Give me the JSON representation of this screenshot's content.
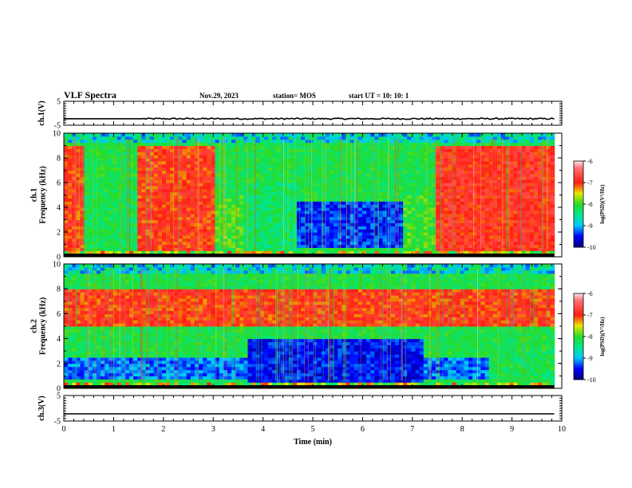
{
  "header": {
    "title": "VLF Spectra",
    "date": "Nov.29, 2023",
    "station": "station= MOS",
    "start": "start  UT =   10: 10: 1"
  },
  "chart_data": [
    {
      "type": "line",
      "ylabel": "ch.1(V)",
      "ylim": [
        -5,
        5
      ],
      "yticks": [
        "5",
        "-5"
      ],
      "series": [
        {
          "x": [
            0,
            9.85
          ],
          "values": [
            -2.3,
            -2.3
          ]
        }
      ]
    },
    {
      "type": "heatmap",
      "ylabel": "ch.1\nFrequency (kHz)",
      "ylim": [
        0,
        10
      ],
      "yticks": [
        "0",
        "2",
        "4",
        "6",
        "8",
        "10"
      ],
      "colorbar": {
        "min": -10,
        "max": -6,
        "ticks": [
          "-6",
          "-7",
          "-8",
          "-9",
          "-10"
        ],
        "label": "log(PSD)(V²/Hz)"
      },
      "regions": [
        {
          "t": [
            0,
            0.4
          ],
          "f": [
            0.5,
            9
          ],
          "level": -7
        },
        {
          "t": [
            0.4,
            1.5
          ],
          "f": [
            0.5,
            5
          ],
          "level": -8.2
        },
        {
          "t": [
            1.5,
            3.0
          ],
          "f": [
            0.5,
            9
          ],
          "level": -7
        },
        {
          "t": [
            3.0,
            3.6
          ],
          "f": [
            0.5,
            5
          ],
          "level": -8
        },
        {
          "t": [
            3.6,
            4.7
          ],
          "f": [
            0.5,
            6
          ],
          "level": -8.3
        },
        {
          "t": [
            4.7,
            6.8
          ],
          "f": [
            0.8,
            4.5
          ],
          "level": -9.4
        },
        {
          "t": [
            6.8,
            7.5
          ],
          "f": [
            0.5,
            5
          ],
          "level": -8
        },
        {
          "t": [
            7.5,
            9.85
          ],
          "f": [
            0.5,
            9
          ],
          "level": -6.9
        }
      ]
    },
    {
      "type": "heatmap",
      "ylabel": "ch.2\nFrequency (kHz)",
      "ylim": [
        0,
        10
      ],
      "yticks": [
        "0",
        "2",
        "4",
        "6",
        "8",
        "10"
      ],
      "colorbar": {
        "min": -10,
        "max": -6,
        "ticks": [
          "-6",
          "-7",
          "-8",
          "-9",
          "-10"
        ],
        "label": "log(PSD)(V²/Hz)"
      },
      "regions": [
        {
          "t": [
            0,
            9.85
          ],
          "f": [
            5,
            8
          ],
          "level": -7
        },
        {
          "t": [
            0,
            9.85
          ],
          "f": [
            0.8,
            2.5
          ],
          "level": -9.2
        },
        {
          "t": [
            3.7,
            7.2
          ],
          "f": [
            0.5,
            4
          ],
          "level": -9.5
        },
        {
          "t": [
            8.5,
            9.85
          ],
          "f": [
            0.5,
            3
          ],
          "level": -8.2
        }
      ]
    },
    {
      "type": "line",
      "ylabel": "ch.3(V)",
      "xlabel": "Time  (min)",
      "ylim": [
        -5,
        5
      ],
      "yticks": [
        "5",
        "-5"
      ],
      "x_ticks": [
        "0",
        "1",
        "2",
        "3",
        "4",
        "5",
        "6",
        "7",
        "8",
        "9",
        "10"
      ],
      "xlim": [
        0,
        10
      ],
      "series": [
        {
          "x": [
            0,
            9.85
          ],
          "values": [
            -2.2,
            -2.2
          ]
        }
      ]
    }
  ],
  "colors": {
    "accent_red": "#ff2020",
    "low_blue": "#00008b",
    "mid_green": "#22dd22"
  }
}
